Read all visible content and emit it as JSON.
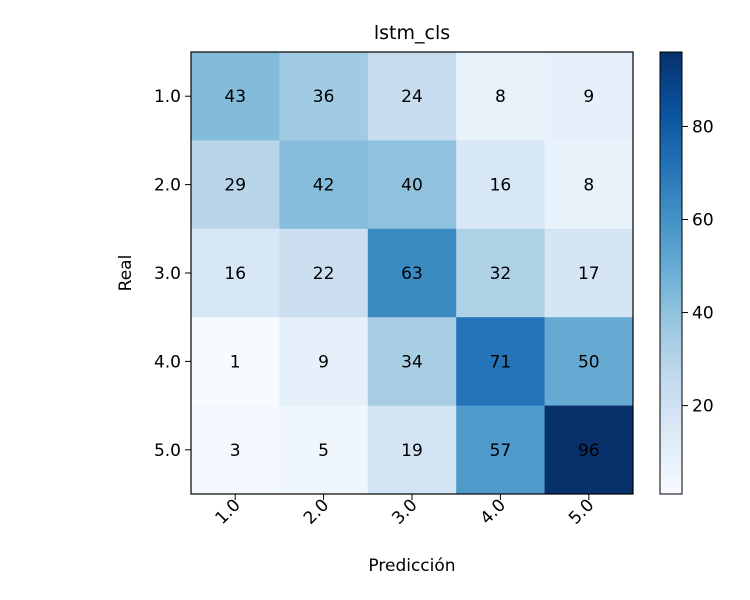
{
  "chart_data": {
    "type": "heatmap",
    "title": "lstm_cls",
    "xlabel": "Predicción",
    "ylabel": "Real",
    "x_categories": [
      "1.0",
      "2.0",
      "3.0",
      "4.0",
      "5.0"
    ],
    "y_categories": [
      "1.0",
      "2.0",
      "3.0",
      "4.0",
      "5.0"
    ],
    "values": [
      [
        43,
        36,
        24,
        8,
        9
      ],
      [
        29,
        42,
        40,
        16,
        8
      ],
      [
        16,
        22,
        63,
        32,
        17
      ],
      [
        1,
        9,
        34,
        71,
        50
      ],
      [
        3,
        5,
        19,
        57,
        96
      ]
    ],
    "colormap": "Blues",
    "color_range": [
      1,
      96
    ],
    "colorbar_ticks": [
      20,
      40,
      60,
      80
    ],
    "grid": false
  }
}
